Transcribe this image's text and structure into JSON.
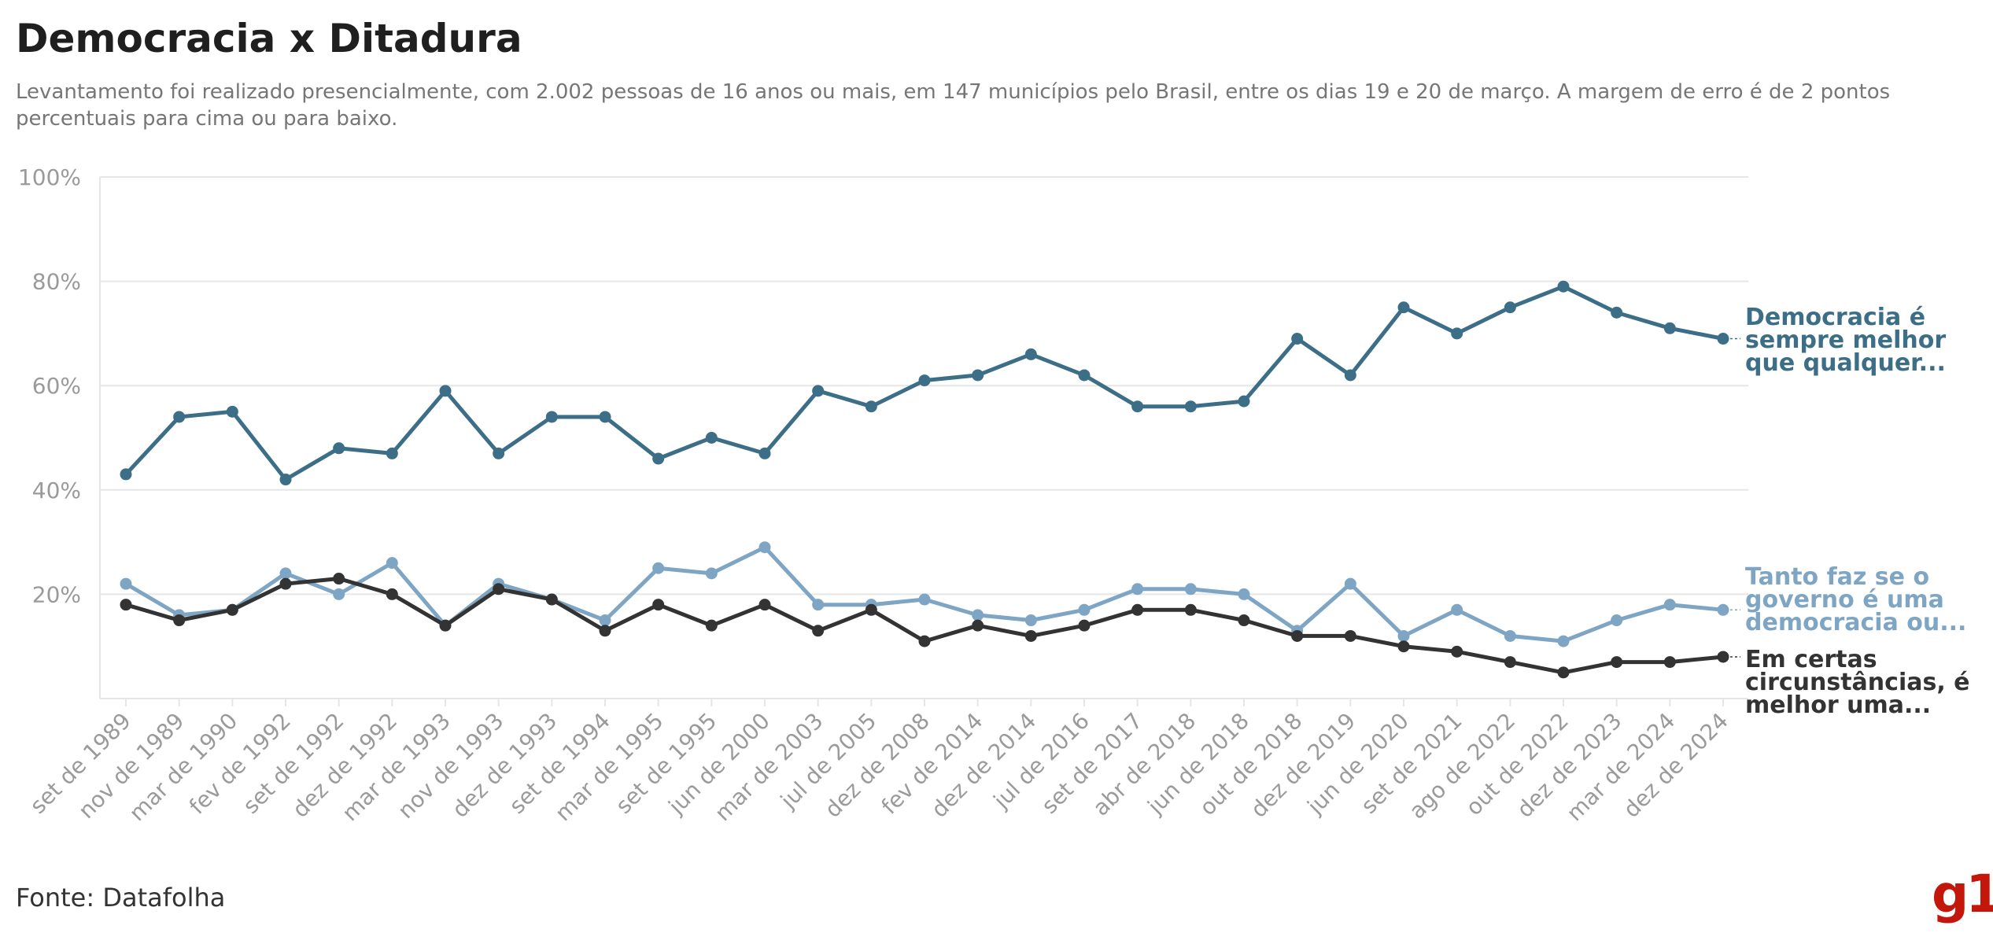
{
  "title": "Democracia x Ditadura",
  "subtitle": "Levantamento foi realizado presencialmente, com 2.002 pessoas de 16 anos ou mais, em 147 municípios pelo Brasil, entre os dias 19 e 20 de março. A margem de erro é de 2 pontos percentuais para cima ou para baixo.",
  "source": "Fonte: Datafolha",
  "logo_text": "g1",
  "colors": {
    "democracia": "#3d6e88",
    "tanto_faz": "#7ea6c4",
    "ditadura": "#333333",
    "grid": "#e6e6e6",
    "logo": "#c4170c"
  },
  "chart_data": {
    "type": "line",
    "categories": [
      "set de 1989",
      "nov de 1989",
      "mar de 1990",
      "fev de 1992",
      "set de 1992",
      "dez de 1992",
      "mar de 1993",
      "nov de 1993",
      "dez de 1993",
      "set de 1994",
      "mar de 1995",
      "set de 1995",
      "jun de 2000",
      "mar de 2003",
      "jul de 2005",
      "dez de 2008",
      "fev de 2014",
      "dez de 2014",
      "jul de 2016",
      "set de 2017",
      "abr de 2018",
      "jun de 2018",
      "out de 2018",
      "dez de 2019",
      "jun de 2020",
      "set de 2021",
      "ago de 2022",
      "out de 2022",
      "dez de 2023",
      "mar de 2024",
      "dez de 2024"
    ],
    "ylim": [
      0,
      100
    ],
    "yticks": [
      "100%",
      "80%",
      "60%",
      "40%",
      "20%"
    ],
    "ytick_values": [
      100,
      80,
      60,
      40,
      20
    ],
    "grid": true,
    "series": [
      {
        "key": "democracia",
        "label_lines": [
          "Democracia é",
          "sempre melhor",
          "que qualquer..."
        ],
        "values": [
          43,
          54,
          55,
          42,
          48,
          47,
          59,
          47,
          54,
          54,
          46,
          50,
          47,
          59,
          56,
          61,
          62,
          66,
          62,
          56,
          56,
          57,
          69,
          62,
          75,
          70,
          75,
          79,
          74,
          71,
          69
        ]
      },
      {
        "key": "tanto_faz",
        "label_lines": [
          "Tanto faz se o",
          "governo é uma",
          "democracia ou..."
        ],
        "values": [
          22,
          16,
          17,
          24,
          20,
          26,
          14,
          22,
          19,
          15,
          25,
          24,
          29,
          18,
          18,
          19,
          16,
          15,
          17,
          21,
          21,
          20,
          13,
          22,
          12,
          17,
          12,
          11,
          15,
          18,
          17
        ]
      },
      {
        "key": "ditadura",
        "label_lines": [
          "Em certas",
          "circunstâncias, é",
          "melhor uma..."
        ],
        "values": [
          18,
          15,
          17,
          22,
          23,
          20,
          14,
          21,
          19,
          13,
          18,
          14,
          18,
          13,
          17,
          11,
          14,
          12,
          14,
          17,
          17,
          15,
          12,
          12,
          10,
          9,
          7,
          5,
          7,
          7,
          8
        ]
      }
    ]
  }
}
